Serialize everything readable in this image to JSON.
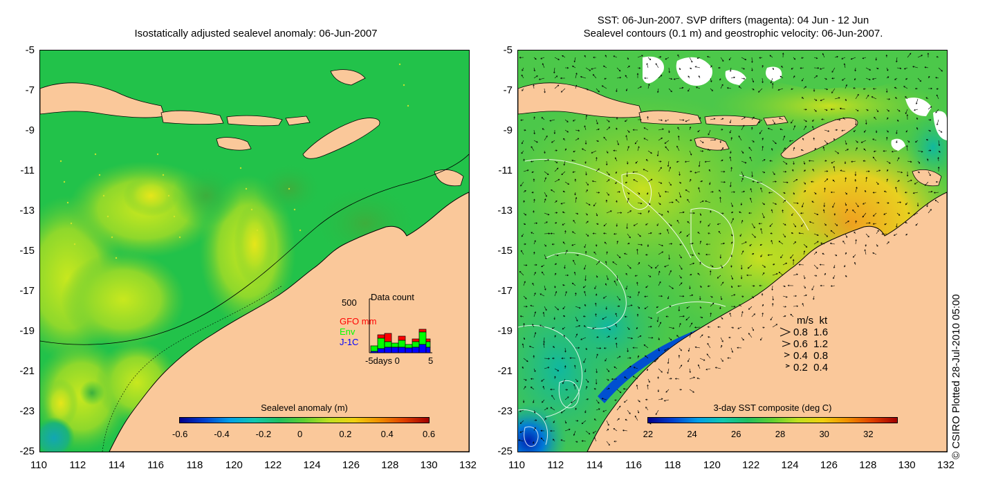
{
  "left_panel": {
    "title": "Isostatically adjusted sealevel anomaly: 06-Jun-2007",
    "colorbar_title": "Sealevel anomaly (m)",
    "colorbar_ticks": [
      "-0.6",
      "-0.4",
      "-0.2",
      "0",
      "0.2",
      "0.4",
      "0.6"
    ],
    "histogram": {
      "ymax_label": "500",
      "title": "Data count",
      "series_labels": {
        "gfo": "GFO mm",
        "env": "Env",
        "j1c": "J-1C"
      },
      "series_colors": {
        "gfo": "#ff0000",
        "env": "#00ff00",
        "j1c": "#0000ff"
      },
      "xlabel": "-5days 0",
      "xmax_label": "5"
    }
  },
  "right_panel": {
    "title_line1": "SST: 06-Jun-2007. SVP drifters (magenta): 04 Jun - 12 Jun",
    "title_line2": "Sealevel contours (0.1 m) and geostrophic velocity: 06-Jun-2007.",
    "colorbar_title": "3-day SST composite (deg C)",
    "colorbar_ticks": [
      "22",
      "24",
      "26",
      "28",
      "30",
      "32"
    ],
    "velocity_legend": {
      "header": "m/s  kt",
      "rows": [
        "0.8  1.6",
        "0.6  1.2",
        "0.4  0.8",
        "0.2  0.4"
      ]
    }
  },
  "axes": {
    "x_ticks": [
      "110",
      "112",
      "114",
      "116",
      "118",
      "120",
      "122",
      "124",
      "126",
      "128",
      "130",
      "132"
    ],
    "y_ticks": [
      "-5",
      "-7",
      "-9",
      "-11",
      "-13",
      "-15",
      "-17",
      "-19",
      "-21",
      "-23",
      "-25"
    ]
  },
  "copyright": "© CSIRO Plotted 28-Jul-2010 05:00",
  "colors": {
    "land": "#fac89a",
    "sla_base": "#21c24a",
    "sst_base": "#37c84a"
  }
}
